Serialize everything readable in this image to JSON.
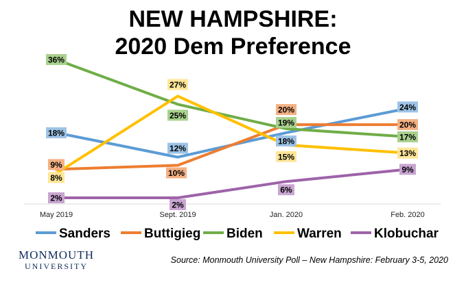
{
  "title_line1": "NEW HAMPSHIRE:",
  "title_line2": "2020 Dem Preference",
  "logo_line1": "MONMOUTH",
  "logo_line2": "UNIVERSITY",
  "source": "Source:  Monmouth University Poll – New Hampshire: February 3-5, 2020",
  "chart_data": {
    "type": "line",
    "categories": [
      "May 2019",
      "Sept. 2019",
      "Jan. 2020",
      "Feb. 2020"
    ],
    "ylim": [
      0,
      40
    ],
    "grid": false,
    "legend_position": "bottom",
    "series": [
      {
        "name": "Sanders",
        "color": "#5b9bd5",
        "label_bg": "#9dc3e6",
        "values": [
          18,
          12,
          18,
          24
        ]
      },
      {
        "name": "Buttigieg",
        "color": "#ed7d31",
        "label_bg": "#f4b183",
        "values": [
          9,
          10,
          20,
          20
        ]
      },
      {
        "name": "Biden",
        "color": "#70ad47",
        "label_bg": "#a9d18e",
        "values": [
          36,
          25,
          19,
          17
        ]
      },
      {
        "name": "Warren",
        "color": "#ffc000",
        "label_bg": "#ffe699",
        "values": [
          8,
          27,
          15,
          13
        ]
      },
      {
        "name": "Klobuchar",
        "color": "#9e63a8",
        "label_bg": "#c9a5d1",
        "values": [
          2,
          2,
          6,
          9
        ]
      }
    ],
    "value_suffix": "%"
  }
}
